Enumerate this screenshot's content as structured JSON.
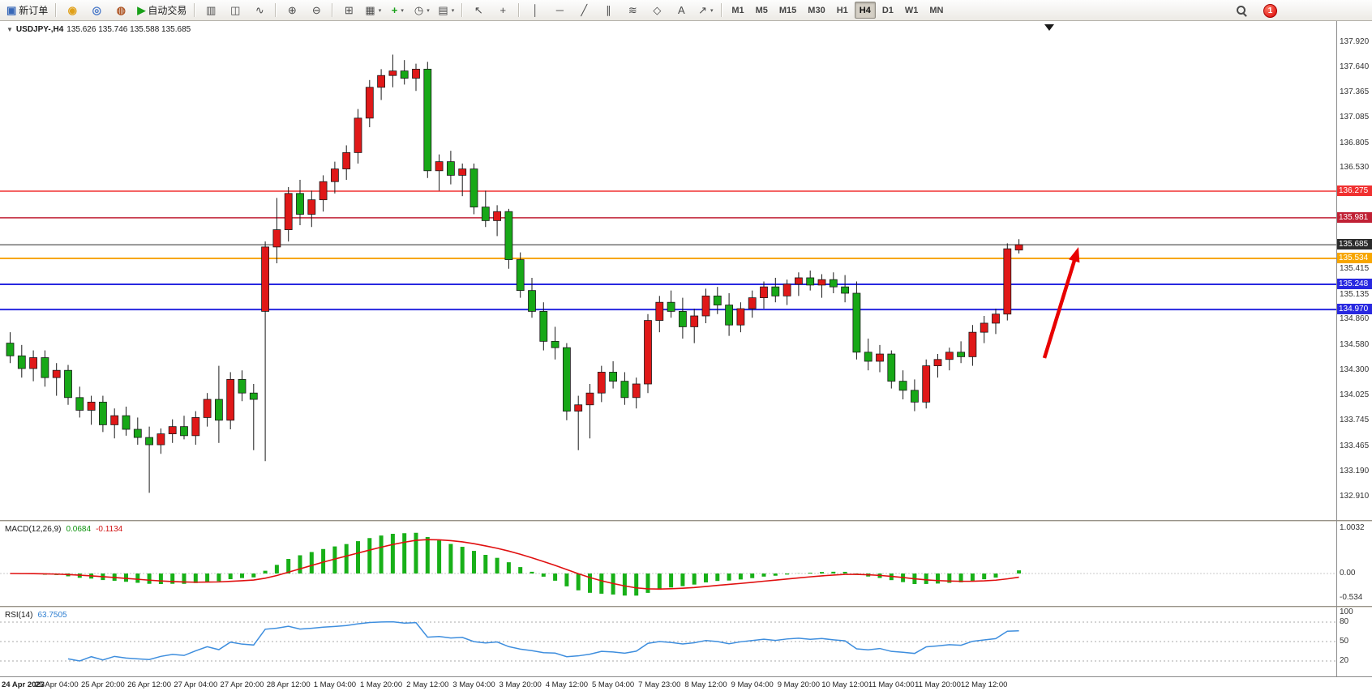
{
  "toolbar": {
    "buttons": [
      {
        "name": "new-order-button",
        "glyph": "▣",
        "glyph_color": "#3868b8",
        "label": "新订单"
      },
      {
        "sep": true
      },
      {
        "name": "mql5-button",
        "glyph": "◉",
        "glyph_color": "#e0a018"
      },
      {
        "name": "community-button",
        "glyph": "◎",
        "glyph_color": "#4878c8"
      },
      {
        "name": "market-button",
        "glyph": "◍",
        "glyph_color": "#b05828"
      },
      {
        "name": "autotrade-button",
        "glyph": "▶",
        "glyph_color": "#18a018",
        "label": "自动交易"
      },
      {
        "sep": true
      },
      {
        "name": "bar-chart-button",
        "glyph": "▥"
      },
      {
        "name": "candlestick-chart-button",
        "glyph": "◫"
      },
      {
        "name": "line-chart-button",
        "glyph": "∿"
      },
      {
        "sep": true
      },
      {
        "name": "zoom-in-button",
        "glyph": "⊕"
      },
      {
        "name": "zoom-out-button",
        "glyph": "⊖"
      },
      {
        "sep": true
      },
      {
        "name": "tile-windows-button",
        "glyph": "⊞"
      },
      {
        "name": "arrange-windows-button",
        "glyph": "▦",
        "caret": true
      },
      {
        "name": "indicators-button",
        "glyph": "+",
        "glyph_color": "#18a018",
        "caret": true
      },
      {
        "name": "periods-button",
        "glyph": "◷",
        "caret": true
      },
      {
        "name": "templates-button",
        "glyph": "▤",
        "caret": true
      },
      {
        "sep": true
      },
      {
        "name": "cursor-button",
        "glyph": "↖"
      },
      {
        "name": "crosshair-button",
        "glyph": "+"
      },
      {
        "sep": true
      },
      {
        "name": "vertical-line-button",
        "glyph": "│"
      },
      {
        "name": "horizontal-line-button",
        "glyph": "─"
      },
      {
        "name": "trendline-button",
        "glyph": "╱"
      },
      {
        "name": "equidistant-channel-button",
        "glyph": "∥"
      },
      {
        "name": "fibonacci-button",
        "glyph": "≋"
      },
      {
        "name": "shapes-button",
        "glyph": "◇"
      },
      {
        "name": "text-button",
        "glyph": "A"
      },
      {
        "name": "arrow-tool-button",
        "glyph": "↗",
        "caret": true
      },
      {
        "sep": true
      }
    ],
    "timeframes": [
      "M1",
      "M5",
      "M15",
      "M30",
      "H1",
      "H4",
      "D1",
      "W1",
      "MN"
    ],
    "active_timeframe": "H4",
    "notification_count": "1"
  },
  "chart": {
    "symbol_label": "USDJPY-,H4",
    "ohlc_label": "135.626 135.746 135.588 135.685",
    "price_axis": [
      137.92,
      137.64,
      137.365,
      137.085,
      136.805,
      136.53,
      136.25,
      135.97,
      135.69,
      135.415,
      135.135,
      134.86,
      134.58,
      134.3,
      134.025,
      133.745,
      133.465,
      133.19,
      132.91
    ],
    "hlines": [
      {
        "price": 136.275,
        "label": "136.275",
        "color": "#f03030",
        "w": 1.5
      },
      {
        "price": 135.981,
        "label": "135.981",
        "color": "#c02034",
        "w": 1.5
      },
      {
        "price": 135.685,
        "label": "135.685",
        "color": "#2b2b2b",
        "w": 1
      },
      {
        "price": 135.534,
        "label": "135.534",
        "color": "#f7a600",
        "w": 2
      },
      {
        "price": 135.248,
        "label": "135.248",
        "color": "#2828e0",
        "w": 2
      },
      {
        "price": 134.97,
        "label": "134.970",
        "color": "#2828e0",
        "w": 2
      }
    ],
    "annotation_arrow": {
      "color": "#e80000"
    }
  },
  "macd": {
    "label": "MACD(12,26,9)",
    "main_value": "0.0684",
    "signal_value": "-0.1134",
    "histogram_color": "#18b018",
    "signal_color": "#e01010",
    "axis": [
      {
        "v": 1.0032,
        "t": "1.0032"
      },
      {
        "v": 0,
        "t": "0.00"
      },
      {
        "v": -0.534,
        "t": "-0.534"
      }
    ]
  },
  "rsi": {
    "label": "RSI(14)",
    "value": "63.7505",
    "line_color": "#3e8ede",
    "levels": [
      80,
      50,
      20
    ],
    "axis": [
      {
        "v": 100,
        "t": "100"
      },
      {
        "v": 80,
        "t": "80"
      },
      {
        "v": 50,
        "t": "50"
      },
      {
        "v": 20,
        "t": "20"
      }
    ]
  },
  "chart_data": {
    "type": "candlestick",
    "symbol": "USDJPY-",
    "timeframe": "H4",
    "ohlc_current": {
      "open": 135.626,
      "high": 135.746,
      "low": 135.588,
      "close": 135.685
    },
    "ylim": [
      132.65,
      138.15
    ],
    "bull_color": "#e01818",
    "bear_color": "#17a817",
    "hlines": [
      136.275,
      135.981,
      135.685,
      135.534,
      135.248,
      134.97
    ],
    "label_step": 4,
    "time_labels": [
      "24 Apr 2023",
      "25 Apr 04:00",
      "25 Apr 20:00",
      "26 Apr 12:00",
      "27 Apr 04:00",
      "27 Apr 20:00",
      "28 Apr 12:00",
      "1 May 04:00",
      "1 May 20:00",
      "2 May 12:00",
      "3 May 04:00",
      "3 May 20:00",
      "4 May 12:00",
      "5 May 04:00",
      "7 May 23:00",
      "8 May 12:00",
      "9 May 04:00",
      "9 May 20:00",
      "10 May 12:00",
      "11 May 04:00",
      "11 May 20:00",
      "12 May 12:00"
    ],
    "candles": [
      [
        134.6,
        134.72,
        134.38,
        134.46
      ],
      [
        134.46,
        134.58,
        134.22,
        134.32
      ],
      [
        134.32,
        134.52,
        134.18,
        134.44
      ],
      [
        134.44,
        134.52,
        134.12,
        134.22
      ],
      [
        134.22,
        134.38,
        134.02,
        134.3
      ],
      [
        134.3,
        134.36,
        133.92,
        134.0
      ],
      [
        134.0,
        134.12,
        133.78,
        133.86
      ],
      [
        133.86,
        134.02,
        133.7,
        133.95
      ],
      [
        133.95,
        134.02,
        133.62,
        133.7
      ],
      [
        133.7,
        133.88,
        133.55,
        133.8
      ],
      [
        133.8,
        133.9,
        133.58,
        133.65
      ],
      [
        133.65,
        133.78,
        133.48,
        133.56
      ],
      [
        133.56,
        133.68,
        132.95,
        133.48
      ],
      [
        133.48,
        133.66,
        133.38,
        133.6
      ],
      [
        133.6,
        133.76,
        133.5,
        133.68
      ],
      [
        133.68,
        133.8,
        133.54,
        133.58
      ],
      [
        133.58,
        133.85,
        133.48,
        133.78
      ],
      [
        133.78,
        134.05,
        133.68,
        133.98
      ],
      [
        133.98,
        134.35,
        133.5,
        133.75
      ],
      [
        133.75,
        134.28,
        133.65,
        134.2
      ],
      [
        134.2,
        134.3,
        133.96,
        134.05
      ],
      [
        134.05,
        134.15,
        133.42,
        133.98
      ],
      [
        134.95,
        135.72,
        133.3,
        135.66
      ],
      [
        135.66,
        136.2,
        135.48,
        135.85
      ],
      [
        135.85,
        136.32,
        135.72,
        136.25
      ],
      [
        136.25,
        136.4,
        135.9,
        136.02
      ],
      [
        136.02,
        136.28,
        135.88,
        136.18
      ],
      [
        136.18,
        136.45,
        136.05,
        136.38
      ],
      [
        136.38,
        136.6,
        136.25,
        136.52
      ],
      [
        136.52,
        136.78,
        136.4,
        136.7
      ],
      [
        136.7,
        137.18,
        136.58,
        137.08
      ],
      [
        137.08,
        137.5,
        136.98,
        137.42
      ],
      [
        137.42,
        137.62,
        137.28,
        137.55
      ],
      [
        137.55,
        137.78,
        137.42,
        137.6
      ],
      [
        137.6,
        137.72,
        137.45,
        137.52
      ],
      [
        137.52,
        137.68,
        137.38,
        137.62
      ],
      [
        137.62,
        137.7,
        136.42,
        136.5
      ],
      [
        136.5,
        136.68,
        136.28,
        136.6
      ],
      [
        136.6,
        136.72,
        136.35,
        136.45
      ],
      [
        136.45,
        136.58,
        136.22,
        136.52
      ],
      [
        136.52,
        136.58,
        136.02,
        136.1
      ],
      [
        136.1,
        136.28,
        135.88,
        135.95
      ],
      [
        135.95,
        136.12,
        135.78,
        136.05
      ],
      [
        136.05,
        136.08,
        135.42,
        135.52
      ],
      [
        135.52,
        135.6,
        135.1,
        135.18
      ],
      [
        135.18,
        135.32,
        134.88,
        134.95
      ],
      [
        134.95,
        135.05,
        134.52,
        134.62
      ],
      [
        134.62,
        134.78,
        134.42,
        134.55
      ],
      [
        134.55,
        134.6,
        133.75,
        133.85
      ],
      [
        133.85,
        134.02,
        133.42,
        133.92
      ],
      [
        133.92,
        134.15,
        133.55,
        134.05
      ],
      [
        134.05,
        134.35,
        133.95,
        134.28
      ],
      [
        134.28,
        134.4,
        134.1,
        134.18
      ],
      [
        134.18,
        134.28,
        133.92,
        134.0
      ],
      [
        134.0,
        134.22,
        133.88,
        134.15
      ],
      [
        134.15,
        134.92,
        134.05,
        134.85
      ],
      [
        134.85,
        135.12,
        134.72,
        135.05
      ],
      [
        135.05,
        135.18,
        134.88,
        134.95
      ],
      [
        134.95,
        135.1,
        134.65,
        134.78
      ],
      [
        134.78,
        134.98,
        134.6,
        134.9
      ],
      [
        134.9,
        135.2,
        134.82,
        135.12
      ],
      [
        135.12,
        135.22,
        134.92,
        135.02
      ],
      [
        135.02,
        135.15,
        134.68,
        134.8
      ],
      [
        134.8,
        135.05,
        134.72,
        134.98
      ],
      [
        134.98,
        135.18,
        134.88,
        135.1
      ],
      [
        135.1,
        135.28,
        134.98,
        135.22
      ],
      [
        135.22,
        135.32,
        135.05,
        135.12
      ],
      [
        135.12,
        135.3,
        135.02,
        135.25
      ],
      [
        135.25,
        135.38,
        135.12,
        135.32
      ],
      [
        135.32,
        135.4,
        135.18,
        135.24
      ],
      [
        135.24,
        135.36,
        135.1,
        135.3
      ],
      [
        135.3,
        135.38,
        135.15,
        135.22
      ],
      [
        135.22,
        135.35,
        135.05,
        135.15
      ],
      [
        135.15,
        135.28,
        134.42,
        134.5
      ],
      [
        134.5,
        134.65,
        134.3,
        134.4
      ],
      [
        134.4,
        134.58,
        134.28,
        134.48
      ],
      [
        134.48,
        134.52,
        134.1,
        134.18
      ],
      [
        134.18,
        134.3,
        133.98,
        134.08
      ],
      [
        134.08,
        134.2,
        133.85,
        133.95
      ],
      [
        133.95,
        134.42,
        133.88,
        134.35
      ],
      [
        134.35,
        134.48,
        134.22,
        134.42
      ],
      [
        134.42,
        134.55,
        134.3,
        134.5
      ],
      [
        134.5,
        134.62,
        134.38,
        134.45
      ],
      [
        134.45,
        134.8,
        134.35,
        134.72
      ],
      [
        134.72,
        134.9,
        134.6,
        134.82
      ],
      [
        134.82,
        134.98,
        134.7,
        134.92
      ],
      [
        134.92,
        135.7,
        134.85,
        135.64
      ],
      [
        135.626,
        135.746,
        135.588,
        135.685
      ]
    ]
  }
}
